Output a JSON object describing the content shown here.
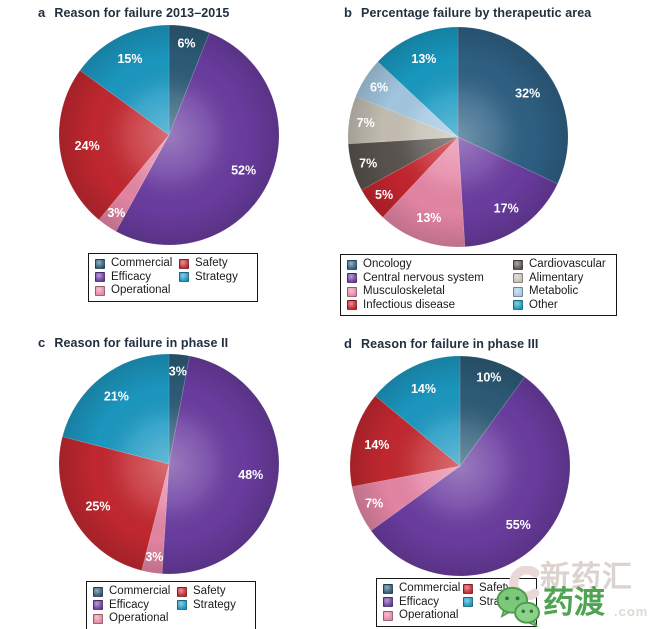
{
  "chart_data": [
    {
      "type": "pie",
      "panel_letter": "a",
      "title": "Reason for failure 2013–2015",
      "direction": "clockwise",
      "start_angle_deg": 0,
      "label_color": "#ffffff",
      "slices": [
        {
          "label": "Commercial",
          "value": 6,
          "display": "6%",
          "color": "#2d5c77"
        },
        {
          "label": "Efficacy",
          "value": 52,
          "display": "52%",
          "color": "#6b3da1"
        },
        {
          "label": "Operational",
          "value": 3,
          "display": "3%",
          "color": "#e687a6"
        },
        {
          "label": "Safety",
          "value": 24,
          "display": "24%",
          "color": "#c42830"
        },
        {
          "label": "Strategy",
          "value": 15,
          "display": "15%",
          "color": "#1c99c2"
        }
      ],
      "legend_columns": [
        [
          "Commercial",
          "Efficacy",
          "Operational"
        ],
        [
          "Safety",
          "Strategy"
        ]
      ]
    },
    {
      "type": "pie",
      "panel_letter": "b",
      "title": "Percentage failure by therapeutic area",
      "direction": "clockwise",
      "start_angle_deg": 0,
      "label_color": "#ffffff",
      "slices": [
        {
          "label": "Oncology",
          "value": 32,
          "display": "32%",
          "color": "#2f6184"
        },
        {
          "label": "Central nervous system",
          "value": 17,
          "display": "17%",
          "color": "#6b3da1"
        },
        {
          "label": "Musculoskeletal",
          "value": 13,
          "display": "13%",
          "color": "#e687a6"
        },
        {
          "label": "Infectious disease",
          "value": 5,
          "display": "5%",
          "color": "#c5242e"
        },
        {
          "label": "Cardiovascular",
          "value": 7,
          "display": "7%",
          "color": "#5a534f"
        },
        {
          "label": "Alimentary",
          "value": 7,
          "display": "7%",
          "color": "#c6c0b4"
        },
        {
          "label": "Metabolic",
          "value": 6,
          "display": "6%",
          "color": "#a4c9e2"
        },
        {
          "label": "Other",
          "value": 13,
          "display": "13%",
          "color": "#199ac1"
        }
      ],
      "legend_columns": [
        [
          "Oncology",
          "Central nervous system",
          "Musculoskeletal",
          "Infectious disease"
        ],
        [
          "Cardiovascular",
          "Alimentary",
          "Metabolic",
          "Other"
        ]
      ]
    },
    {
      "type": "pie",
      "panel_letter": "c",
      "title": "Reason for failure in phase II",
      "direction": "clockwise",
      "start_angle_deg": 0,
      "label_color": "#ffffff",
      "slices": [
        {
          "label": "Commercial",
          "value": 3,
          "display": "3%",
          "color": "#2d5c77"
        },
        {
          "label": "Efficacy",
          "value": 48,
          "display": "48%",
          "color": "#6b3da1"
        },
        {
          "label": "Operational",
          "value": 3,
          "display": "3%",
          "color": "#e687a6"
        },
        {
          "label": "Safety",
          "value": 25,
          "display": "25%",
          "color": "#c42830"
        },
        {
          "label": "Strategy",
          "value": 21,
          "display": "21%",
          "color": "#1c99c2"
        }
      ],
      "legend_columns": [
        [
          "Commercial",
          "Efficacy",
          "Operational"
        ],
        [
          "Safety",
          "Strategy"
        ]
      ]
    },
    {
      "type": "pie",
      "panel_letter": "d",
      "title": "Reason for failure in phase III",
      "direction": "clockwise",
      "start_angle_deg": 0,
      "label_color": "#ffffff",
      "slices": [
        {
          "label": "Commercial",
          "value": 10,
          "display": "10%",
          "color": "#2d5c77"
        },
        {
          "label": "Efficacy",
          "value": 55,
          "display": "55%",
          "color": "#6b3da1"
        },
        {
          "label": "Operational",
          "value": 7,
          "display": "7%",
          "color": "#e687a6"
        },
        {
          "label": "Safety",
          "value": 14,
          "display": "14%",
          "color": "#c42830"
        },
        {
          "label": "Strategy",
          "value": 14,
          "display": "14%",
          "color": "#1c99c2"
        }
      ],
      "legend_columns": [
        [
          "Commercial",
          "Efficacy",
          "Operational"
        ],
        [
          "Safety",
          "Strategy"
        ]
      ]
    }
  ],
  "watermark": {
    "top_text": "新药汇",
    "bottom_text": "药渡",
    "suffix_text": ".com",
    "colors": {
      "top": "#dcd3cf",
      "bottom": "#4fa351",
      "icon_green": "#72c372"
    }
  }
}
